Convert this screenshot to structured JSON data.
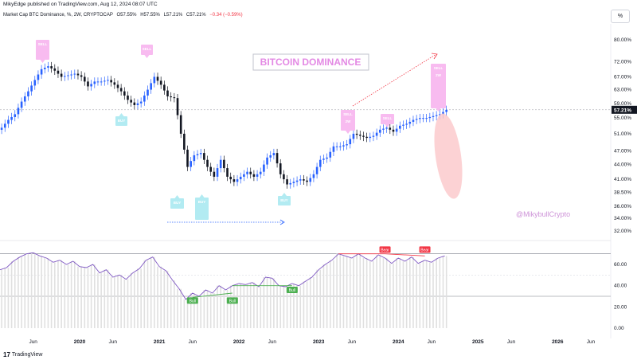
{
  "publisher_line": "MikyEdge published on TradingView.com, Aug 12, 2024 08:07 UTC",
  "symbol_line": {
    "name": "Market Cap BTC Dominance, %, 2W, CRYPTOCAP",
    "open": "O57.55%",
    "high": "H57.55%",
    "low": "L57.21%",
    "close": "C57.21%",
    "change": "−0.34 (−0.59%)"
  },
  "percent_button": "%",
  "footer": {
    "logo": "17",
    "brand": "TradingView"
  },
  "colors": {
    "up": "#2962ff",
    "down": "#131722",
    "rsi_line": "#7e57c2",
    "rsi_band": "#e0e0e0",
    "bear": "#f23645",
    "bull": "#4caf50",
    "pink_label": "#f8bbf0",
    "cyan_label": "#b2ebf2",
    "ellipse": "#fbc7c9",
    "title_text": "#e389e4",
    "watermark": "#ce93d8",
    "price_tag": "#131722"
  },
  "chart_data": [
    {
      "type": "candlestick",
      "title": "BITCOIN DOMINANCE",
      "watermark": "@MikybullCrypto",
      "x_labels": [
        "Jun",
        "2020",
        "Jun",
        "2021",
        "Jun",
        "2022",
        "Jun",
        "2023",
        "Jun",
        "2024",
        "Jun",
        "2025",
        "Jun",
        "2026",
        "Jun"
      ],
      "x_range": [
        "2019-01",
        "2026-09"
      ],
      "y_ticks": [
        32.0,
        34.0,
        36.0,
        38.5,
        41.0,
        44.0,
        47.0,
        51.0,
        55.0,
        59.0,
        63.0,
        67.0,
        72.0,
        80.0
      ],
      "y_tick_labels": [
        "32.00%",
        "34.00%",
        "36.00%",
        "38.50%",
        "41.00%",
        "44.00%",
        "47.00%",
        "51.00%",
        "55.00%",
        "59.00%",
        "63.00%",
        "67.00%",
        "72.00%",
        "80.00%"
      ],
      "y_scale": "log",
      "last_price": 57.21,
      "last_price_label": "57.21%",
      "closes": [
        [
          "2019-01",
          52.5
        ],
        [
          "2019-02",
          54.5
        ],
        [
          "2019-03",
          56.0
        ],
        [
          "2019-04",
          59.5
        ],
        [
          "2019-05",
          62.5
        ],
        [
          "2019-06",
          66.0
        ],
        [
          "2019-07",
          69.5
        ],
        [
          "2019-08",
          70.5
        ],
        [
          "2019-09",
          69.0
        ],
        [
          "2019-10",
          67.0
        ],
        [
          "2019-11",
          67.5
        ],
        [
          "2019-12",
          68.0
        ],
        [
          "2020-01",
          67.0
        ],
        [
          "2020-02",
          64.0
        ],
        [
          "2020-03",
          65.5
        ],
        [
          "2020-04",
          65.5
        ],
        [
          "2020-05",
          66.0
        ],
        [
          "2020-06",
          64.5
        ],
        [
          "2020-07",
          62.5
        ],
        [
          "2020-08",
          60.0
        ],
        [
          "2020-09",
          58.5
        ],
        [
          "2020-10",
          59.5
        ],
        [
          "2020-11",
          63.0
        ],
        [
          "2020-12",
          67.0
        ],
        [
          "2021-01",
          64.5
        ],
        [
          "2021-02",
          61.0
        ],
        [
          "2021-03",
          60.5
        ],
        [
          "2021-04",
          51.0
        ],
        [
          "2021-05",
          43.5
        ],
        [
          "2021-06",
          46.0
        ],
        [
          "2021-07",
          46.5
        ],
        [
          "2021-08",
          43.5
        ],
        [
          "2021-09",
          41.5
        ],
        [
          "2021-10",
          45.0
        ],
        [
          "2021-11",
          41.5
        ],
        [
          "2021-12",
          40.5
        ],
        [
          "2022-01",
          41.5
        ],
        [
          "2022-02",
          42.5
        ],
        [
          "2022-03",
          41.5
        ],
        [
          "2022-04",
          42.5
        ],
        [
          "2022-05",
          45.5
        ],
        [
          "2022-06",
          46.5
        ],
        [
          "2022-07",
          42.0
        ],
        [
          "2022-08",
          40.0
        ],
        [
          "2022-09",
          40.5
        ],
        [
          "2022-10",
          41.0
        ],
        [
          "2022-11",
          40.5
        ],
        [
          "2022-12",
          42.0
        ],
        [
          "2023-01",
          45.0
        ],
        [
          "2023-02",
          45.5
        ],
        [
          "2023-03",
          48.0
        ],
        [
          "2023-04",
          48.0
        ],
        [
          "2023-05",
          48.5
        ],
        [
          "2023-06",
          51.0
        ],
        [
          "2023-07",
          50.5
        ],
        [
          "2023-08",
          50.0
        ],
        [
          "2023-09",
          50.5
        ],
        [
          "2023-10",
          52.0
        ],
        [
          "2023-11",
          52.5
        ],
        [
          "2023-12",
          51.5
        ],
        [
          "2024-01",
          53.0
        ],
        [
          "2024-02",
          53.5
        ],
        [
          "2024-03",
          54.5
        ],
        [
          "2024-04",
          55.0
        ],
        [
          "2024-05",
          55.0
        ],
        [
          "2024-06",
          55.5
        ],
        [
          "2024-07",
          56.0
        ],
        [
          "2024-08",
          57.21
        ]
      ],
      "labels": {
        "top_2019": "SELL",
        "top_2021": "SELL",
        "bottom_2020": "BUY",
        "bottom_2021": "BUY",
        "bottom_2021b": "BUY",
        "bottom_2022": "BUY",
        "sell_2023": "SELL",
        "sell_2023_sub": "2W",
        "sell_2024a": "SELL",
        "sell_2024b": "SELL",
        "sell_2024b_sub": "2W"
      }
    },
    {
      "type": "line",
      "name": "RSI",
      "y_ticks": [
        0.0,
        20.0,
        40.0,
        60.0
      ],
      "y_tick_labels": [
        "0.00",
        "20.00",
        "40.00",
        "60.00"
      ],
      "y_range": [
        0,
        80
      ],
      "upper_band": 70,
      "lower_band": 30,
      "values": [
        [
          "2019-01",
          55
        ],
        [
          "2019-02",
          57
        ],
        [
          "2019-03",
          63
        ],
        [
          "2019-04",
          67
        ],
        [
          "2019-05",
          70
        ],
        [
          "2019-06",
          71
        ],
        [
          "2019-07",
          68
        ],
        [
          "2019-08",
          66
        ],
        [
          "2019-09",
          62
        ],
        [
          "2019-10",
          64
        ],
        [
          "2019-11",
          60
        ],
        [
          "2019-12",
          63
        ],
        [
          "2020-01",
          58
        ],
        [
          "2020-02",
          57
        ],
        [
          "2020-03",
          60
        ],
        [
          "2020-04",
          52
        ],
        [
          "2020-05",
          55
        ],
        [
          "2020-06",
          48
        ],
        [
          "2020-07",
          50
        ],
        [
          "2020-08",
          46
        ],
        [
          "2020-09",
          52
        ],
        [
          "2020-10",
          56
        ],
        [
          "2020-11",
          64
        ],
        [
          "2020-12",
          67
        ],
        [
          "2021-01",
          58
        ],
        [
          "2021-02",
          54
        ],
        [
          "2021-03",
          45
        ],
        [
          "2021-04",
          37
        ],
        [
          "2021-05",
          27
        ],
        [
          "2021-06",
          33
        ],
        [
          "2021-07",
          30
        ],
        [
          "2021-08",
          36
        ],
        [
          "2021-09",
          33
        ],
        [
          "2021-10",
          40
        ],
        [
          "2021-11",
          36
        ],
        [
          "2021-12",
          40
        ],
        [
          "2022-01",
          42
        ],
        [
          "2022-02",
          41
        ],
        [
          "2022-03",
          43
        ],
        [
          "2022-04",
          39
        ],
        [
          "2022-05",
          48
        ],
        [
          "2022-06",
          47
        ],
        [
          "2022-07",
          40
        ],
        [
          "2022-08",
          39
        ],
        [
          "2022-09",
          42
        ],
        [
          "2022-10",
          40
        ],
        [
          "2022-11",
          44
        ],
        [
          "2022-12",
          48
        ],
        [
          "2023-01",
          55
        ],
        [
          "2023-02",
          60
        ],
        [
          "2023-03",
          64
        ],
        [
          "2023-04",
          70
        ],
        [
          "2023-05",
          68
        ],
        [
          "2023-06",
          66
        ],
        [
          "2023-07",
          70
        ],
        [
          "2023-08",
          66
        ],
        [
          "2023-09",
          63
        ],
        [
          "2023-10",
          69
        ],
        [
          "2023-11",
          66
        ],
        [
          "2023-12",
          61
        ],
        [
          "2024-01",
          66
        ],
        [
          "2024-02",
          63
        ],
        [
          "2024-03",
          67
        ],
        [
          "2024-04",
          61
        ],
        [
          "2024-05",
          64
        ],
        [
          "2024-06",
          62
        ],
        [
          "2024-07",
          66
        ],
        [
          "2024-08",
          68
        ]
      ],
      "markers": [
        {
          "label": "Bull",
          "date": "2021-06"
        },
        {
          "label": "Bull",
          "date": "2021-12"
        },
        {
          "label": "Bull",
          "date": "2022-09"
        },
        {
          "label": "Bear",
          "date": "2023-11"
        },
        {
          "label": "Bear",
          "date": "2024-05"
        }
      ]
    }
  ]
}
